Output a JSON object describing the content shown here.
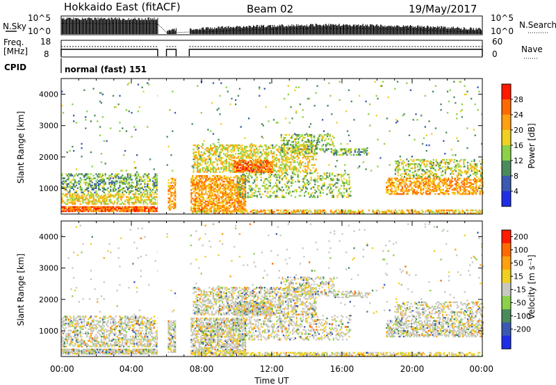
{
  "header": {
    "station": "Hokkaido East (fitACF)",
    "beam": "Beam 02",
    "date": "19/May/2017"
  },
  "summary_panels": {
    "nsky_label": "N.Sky",
    "nsky_ticks": [
      "10^5",
      "10^0"
    ],
    "nsearch_label": "N.Search",
    "nsearch_ticks": [
      "10^5",
      "10^0"
    ],
    "freq_label": "Freq.",
    "freq_unit": "[MHz]",
    "freq_ticks": [
      "18",
      "8"
    ],
    "nave_label": "Nave",
    "nave_ticks": [
      "60",
      "0"
    ],
    "cpid_label": "CPID",
    "cpid_value": "normal (fast) 151"
  },
  "chart_data": [
    {
      "type": "heatmap",
      "name": "power",
      "ylabel": "Slant Range [km]",
      "ylim": [
        180,
        4500
      ],
      "y_ticks": [
        "1000",
        "2000",
        "3000",
        "4000"
      ],
      "y_tick_values": [
        1000,
        2000,
        3000,
        4000
      ],
      "colorbar_label": "Power [dB]",
      "colorbar_ticks": [
        "4",
        "8",
        "12",
        "16",
        "20",
        "24",
        "28"
      ],
      "colorbar_tick_values": [
        4,
        8,
        12,
        16,
        20,
        24,
        28
      ],
      "colorbar_range": [
        0,
        32
      ],
      "colors": [
        "#1f2ee6",
        "#3a5ab0",
        "#4a8a5c",
        "#8cd14a",
        "#f0d020",
        "#ffa010",
        "#ff6a00",
        "#ff1a00"
      ]
    },
    {
      "type": "heatmap",
      "name": "velocity",
      "ylabel": "Slant Range [km]",
      "ylim": [
        180,
        4500
      ],
      "y_ticks": [
        "1000",
        "2000",
        "3000",
        "4000"
      ],
      "y_tick_values": [
        1000,
        2000,
        3000,
        4000
      ],
      "colorbar_label": "Velocity [m s⁻¹]",
      "colorbar_ticks": [
        "200",
        "100",
        "50",
        "15",
        "-15",
        "-50",
        "-100",
        "-200"
      ],
      "colors": [
        "#1f2ee6",
        "#3a5ab0",
        "#4a8a5c",
        "#8cd14a",
        "#c8c8c0",
        "#f0d020",
        "#ffa010",
        "#ff6a00",
        "#ff1a00"
      ]
    }
  ],
  "time_axis": {
    "xlabel": "Time UT",
    "xlim": [
      0,
      24
    ],
    "ticks": [
      "00:00",
      "04:00",
      "08:00",
      "12:00",
      "16:00",
      "20:00",
      "00:00"
    ],
    "tick_values": [
      0,
      4,
      8,
      12,
      16,
      20,
      24
    ],
    "data_gaps": [
      [
        5.5,
        6.0
      ],
      [
        6.55,
        7.3
      ]
    ]
  }
}
